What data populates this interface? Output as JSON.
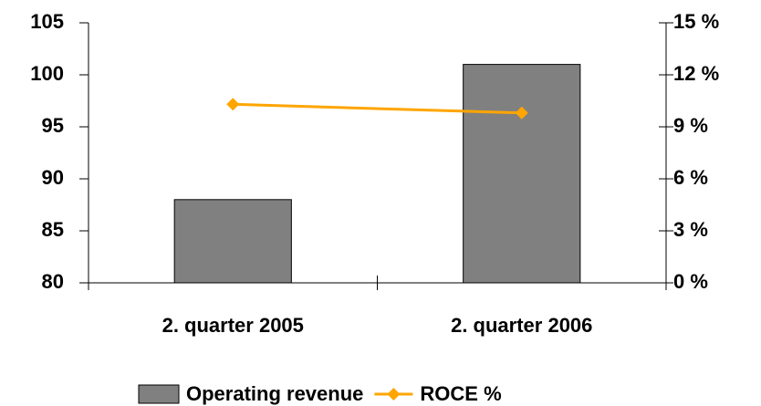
{
  "chart_data": {
    "type": "bar",
    "categories": [
      "2. quarter 2005",
      "2. quarter 2006"
    ],
    "series": [
      {
        "name": "Operating revenue",
        "type": "bar",
        "color": "#808080",
        "values": [
          88,
          101
        ]
      },
      {
        "name": "ROCE %",
        "type": "line",
        "axis": "y2",
        "color": "#ffa500",
        "values": [
          10.3,
          9.8
        ]
      }
    ],
    "ylim": [
      80,
      105
    ],
    "yticks": [
      80,
      85,
      90,
      95,
      100,
      105
    ],
    "y2lim": [
      0,
      15
    ],
    "y2ticks": [
      {
        "value": 0,
        "label": "0 %"
      },
      {
        "value": 3,
        "label": "3 %"
      },
      {
        "value": 6,
        "label": "6 %"
      },
      {
        "value": 9,
        "label": "9 %"
      },
      {
        "value": 12,
        "label": "12 %"
      },
      {
        "value": 15,
        "label": "15 %"
      }
    ],
    "legend": "bottom"
  }
}
